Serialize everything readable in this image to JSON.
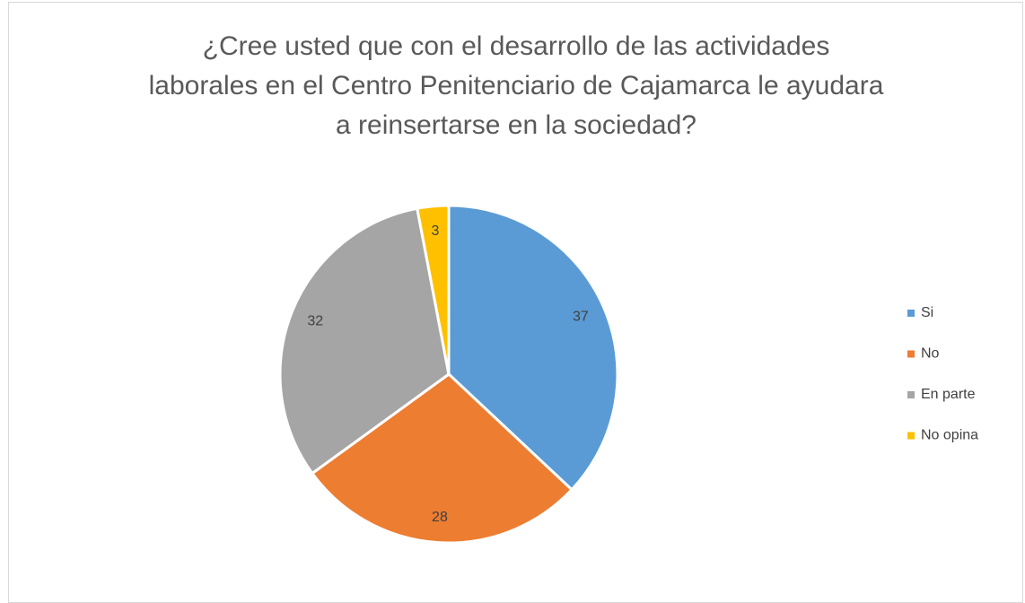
{
  "chart_data": {
    "type": "pie",
    "title": "¿Cree usted que con el desarrollo de las actividades laborales en el Centro Penitenciario de Cajamarca le ayudara a reinsertarse en la sociedad?",
    "categories": [
      "Si",
      "No",
      "En parte",
      "No opina"
    ],
    "values": [
      37,
      28,
      32,
      3
    ],
    "colors": [
      "#5b9bd5",
      "#ed7d31",
      "#a5a5a5",
      "#ffc000"
    ],
    "legend": "right"
  }
}
